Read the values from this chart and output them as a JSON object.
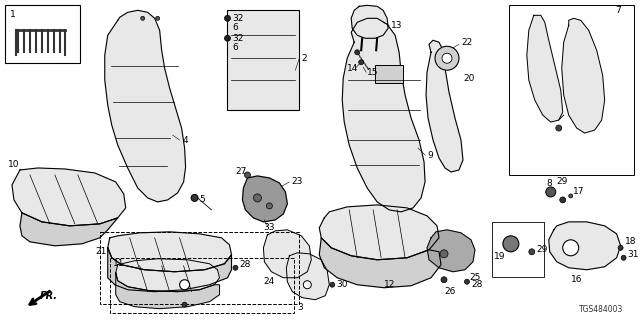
{
  "background_color": "#ffffff",
  "line_color": "#000000",
  "fill_light": "#e8e8e8",
  "fill_mid": "#d0d0d0",
  "fill_dark": "#b0b0b0",
  "diagram_code": "TGS484003",
  "figsize": [
    6.4,
    3.2
  ],
  "dpi": 100
}
